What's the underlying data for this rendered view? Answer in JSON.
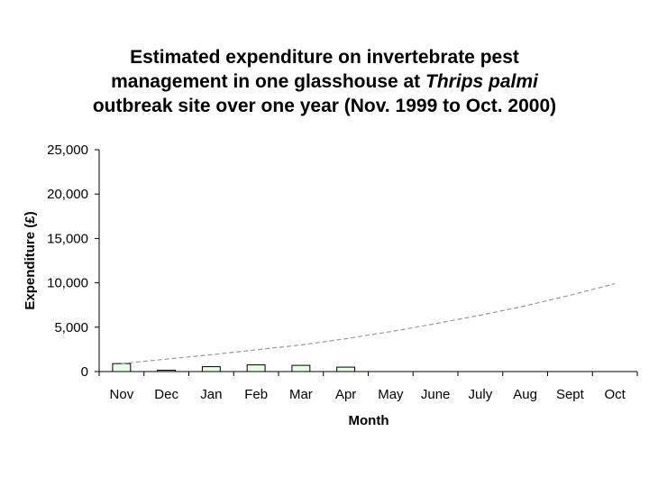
{
  "chart_data": {
    "type": "bar",
    "title_lines": [
      [
        "Estimated expenditure on invertebrate pest"
      ],
      [
        "management in one glasshouse at ",
        {
          "italic": "Thrips palmi"
        }
      ],
      [
        "outbreak site over one year (Nov. 1999 to Oct. 2000)"
      ]
    ],
    "title_line_plain": [
      "Estimated expenditure on invertebrate pest",
      "management in one glasshouse at",
      "Thrips palmi",
      "outbreak site over one year (Nov. 1999 to Oct. 2000)"
    ],
    "xlabel": "Month",
    "ylabel": "Expenditure (£)",
    "categories": [
      "Nov",
      "Dec",
      "Jan",
      "Feb",
      "Mar",
      "Apr",
      "May",
      "June",
      "July",
      "Aug",
      "Sept",
      "Oct"
    ],
    "values": [
      900,
      150,
      550,
      750,
      700,
      500,
      0,
      0,
      0,
      0,
      0,
      0
    ],
    "ylim": [
      0,
      25000
    ],
    "yticks": [
      0,
      5000,
      10000,
      15000,
      20000,
      25000
    ],
    "ytick_labels": [
      "0",
      "5,000",
      "10,000",
      "15,000",
      "20,000",
      "25,000"
    ],
    "trendline": {
      "style": "dashed",
      "color": "#999999",
      "values": [
        900,
        1400,
        1900,
        2450,
        3000,
        3700,
        4500,
        5400,
        6350,
        7400,
        8600,
        9900
      ]
    },
    "bar_fill": "#e6ffe6",
    "bar_stroke": "#000000",
    "grid": false,
    "legend": "none"
  }
}
